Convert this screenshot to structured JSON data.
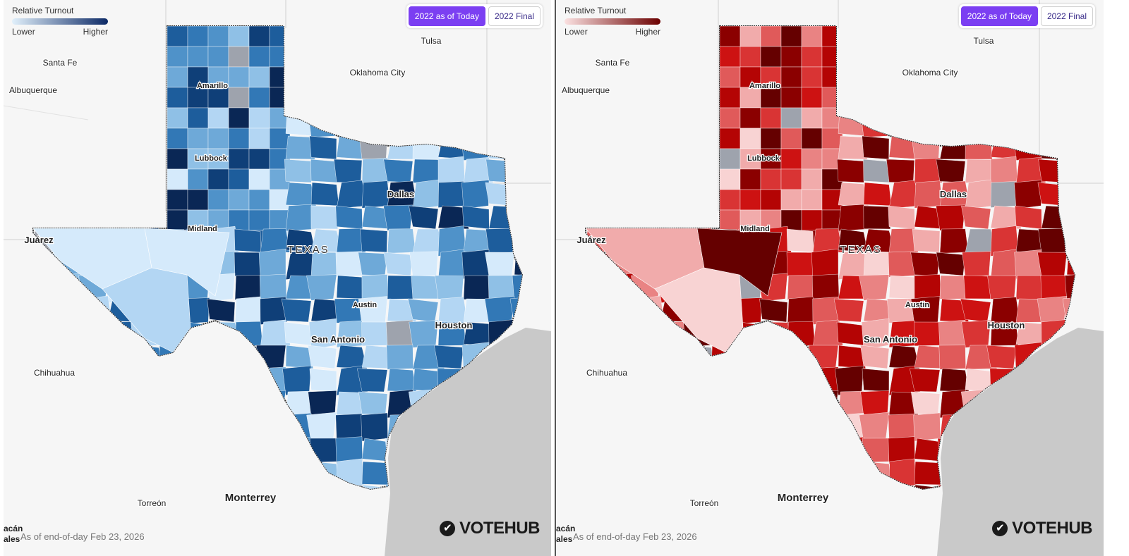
{
  "panels": [
    {
      "theme": "blue",
      "legend": {
        "title": "Relative Turnout",
        "low": "Lower",
        "high": "Higher",
        "gradient": [
          "#e1f0fb",
          "#0d2a66"
        ]
      },
      "toggle": {
        "active_label": "2022 as of Today",
        "inactive_label": "2022 Final"
      },
      "footer": {
        "asof": "As of end-of-day Feb 23, 2026",
        "edge_top": "acán",
        "edge_bottom": "ales"
      },
      "brand": "VOTEHUB"
    },
    {
      "theme": "red",
      "legend": {
        "title": "Relative Turnout",
        "low": "Lower",
        "high": "Higher",
        "gradient": [
          "#fbe1e1",
          "#6b0000"
        ]
      },
      "toggle": {
        "active_label": "2022 as of Today",
        "inactive_label": "2022 Final"
      },
      "footer": {
        "asof": "As of end-of-day Feb 23, 2026",
        "edge_top": "acán",
        "edge_bottom": "ales"
      },
      "brand": "VOTEHUB"
    }
  ],
  "map_labels": {
    "state": "TEXAS",
    "cities": [
      "Santa Fe",
      "Albuquerque",
      "Tulsa",
      "Oklahoma City",
      "Amarillo",
      "Lubbock",
      "Dallas",
      "Midland",
      "Juárez",
      "Austin",
      "Houston",
      "San Antonio",
      "Chihuahua",
      "Torreón",
      "Monterrey"
    ]
  },
  "palettes": {
    "blue": [
      "#d5eafb",
      "#b3d6f3",
      "#8fc0e6",
      "#6ea9d8",
      "#4f92c9",
      "#3278b6",
      "#1d5d9c",
      "#0f3f78",
      "#0a2755"
    ],
    "red": [
      "#f8d3d3",
      "#f1abab",
      "#e98383",
      "#e05a5a",
      "#d93434",
      "#cd1212",
      "#b40404",
      "#8b0000",
      "#650000"
    ],
    "nodata": "#9ea3ad"
  }
}
